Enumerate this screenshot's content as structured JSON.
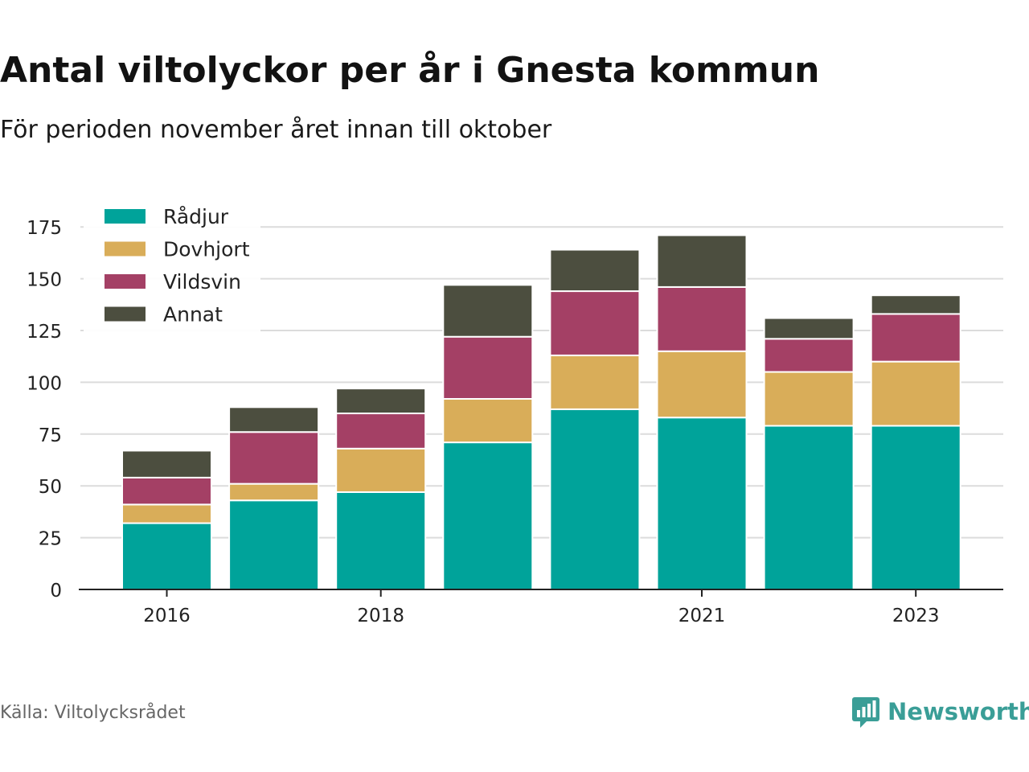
{
  "header": {
    "title": "Antal viltolyckor per år i Gnesta kommun",
    "subtitle": "För perioden november året innan till oktober"
  },
  "footer": {
    "source": "Källa: Viltolycksrådet",
    "brand": "Newsworthy",
    "brand_color": "#3a9e97"
  },
  "chart_data": {
    "type": "bar",
    "stacked": true,
    "title": "Antal viltolyckor per år i Gnesta kommun",
    "subtitle": "För perioden november året innan till oktober",
    "categories": [
      "2016",
      "2017",
      "2018",
      "2019",
      "2020",
      "2021",
      "2022",
      "2023"
    ],
    "x_tick_labels": [
      "2016",
      "",
      "2018",
      "",
      "",
      "2021",
      "",
      "2023"
    ],
    "series": [
      {
        "name": "Rådjur",
        "color": "#00a39a",
        "values": [
          32,
          43,
          47,
          71,
          87,
          83,
          79,
          79
        ]
      },
      {
        "name": "Dovhjort",
        "color": "#d9ad59",
        "values": [
          9,
          8,
          21,
          21,
          26,
          32,
          26,
          31
        ]
      },
      {
        "name": "Vildsvin",
        "color": "#a44065",
        "values": [
          13,
          25,
          17,
          30,
          31,
          31,
          16,
          23
        ]
      },
      {
        "name": "Annat",
        "color": "#4c4e3f",
        "values": [
          13,
          12,
          12,
          25,
          20,
          25,
          10,
          9
        ]
      }
    ],
    "yticks": [
      0,
      25,
      50,
      75,
      100,
      125,
      150,
      175
    ],
    "ylim": [
      0,
      180
    ],
    "grid": true,
    "legend_position": "top-left"
  }
}
